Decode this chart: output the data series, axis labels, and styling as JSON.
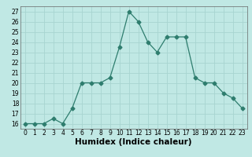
{
  "x": [
    0,
    1,
    2,
    3,
    4,
    5,
    6,
    7,
    8,
    9,
    10,
    11,
    12,
    13,
    14,
    15,
    16,
    17,
    18,
    19,
    20,
    21,
    22,
    23
  ],
  "y": [
    16,
    16,
    16,
    16.5,
    16,
    17.5,
    20,
    20,
    20,
    20.5,
    23.5,
    27,
    26,
    24,
    23,
    24.5,
    24.5,
    24.5,
    20.5,
    20,
    20,
    19,
    18.5,
    17.5
  ],
  "line_color": "#2e7d6e",
  "marker": "D",
  "marker_size": 2.5,
  "bg_color": "#c0e8e4",
  "grid_color": "#a8d4d0",
  "xlabel": "Humidex (Indice chaleur)",
  "xlim": [
    -0.5,
    23.5
  ],
  "ylim": [
    15.5,
    27.5
  ],
  "yticks": [
    16,
    17,
    18,
    19,
    20,
    21,
    22,
    23,
    24,
    25,
    26,
    27
  ],
  "xticks": [
    0,
    1,
    2,
    3,
    4,
    5,
    6,
    7,
    8,
    9,
    10,
    11,
    12,
    13,
    14,
    15,
    16,
    17,
    18,
    19,
    20,
    21,
    22,
    23
  ],
  "tick_fontsize": 5.5,
  "xlabel_fontsize": 7.5
}
